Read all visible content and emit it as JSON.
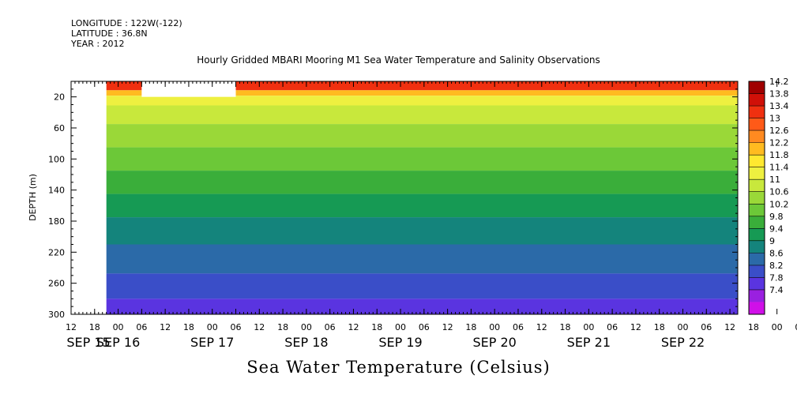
{
  "header": {
    "longitude": "LONGITUDE : 122W(-122)",
    "latitude": "LATITUDE : 36.8N",
    "year": "YEAR : 2012"
  },
  "chart_data": {
    "type": "heatmap",
    "title": "Hourly Gridded MBARI Mooring M1 Sea Water Temperature and Salinity Observations",
    "variable_title": "Sea Water Temperature (Celsius)",
    "ylabel": "DEPTH (m)",
    "y_reversed": true,
    "ylim": [
      300,
      0
    ],
    "y_ticks": [
      20,
      60,
      100,
      140,
      180,
      220,
      260,
      300
    ],
    "x_range_hours": [
      "2012-09-15 12:00",
      "2012-09-22 14:00"
    ],
    "hour_tick_labels": [
      "12",
      "18",
      "00",
      "06",
      "12",
      "18",
      "00",
      "06",
      "12",
      "18",
      "00",
      "06",
      "12",
      "18",
      "00",
      "06",
      "12",
      "18",
      "00",
      "06",
      "12",
      "18",
      "00",
      "06",
      "12",
      "18",
      "00",
      "06",
      "12",
      "18",
      "00",
      "06",
      "12"
    ],
    "date_labels": [
      "SEP 15",
      "SEP 16",
      "SEP 17",
      "SEP 18",
      "SEP 19",
      "SEP 20",
      "SEP 21",
      "SEP 22"
    ],
    "data_start": "2012-09-15 21:00",
    "missing_regions": [
      {
        "from": "2012-09-16 06:00",
        "to": "2012-09-17 06:00",
        "depth_from": 0,
        "depth_to": 20
      }
    ],
    "colorbar_levels": [
      "14.2",
      "13.8",
      "13.4",
      "13",
      "12.6",
      "12.2",
      "11.8",
      "11.4",
      "11",
      "10.6",
      "10.2",
      "9.8",
      "9.4",
      "9",
      "8.6",
      "8.2",
      "7.8",
      "7.4"
    ],
    "colorbar_colors": [
      "#a00000",
      "#d01008",
      "#f03010",
      "#ff5a18",
      "#ff8a20",
      "#ffbb20",
      "#ffe830",
      "#eef040",
      "#c8e83c",
      "#9ad838",
      "#6cc838",
      "#3aae3a",
      "#169a54",
      "#14847c",
      "#2b6aa8",
      "#3a4ec8",
      "#5a34e0",
      "#9a20e0",
      "#d010e8"
    ],
    "profile": [
      {
        "depth": 8,
        "temp": 13.4
      },
      {
        "depth": 15,
        "temp": 12.4
      },
      {
        "depth": 22,
        "temp": 11.6
      },
      {
        "depth": 40,
        "temp": 11.0
      },
      {
        "depth": 70,
        "temp": 10.6
      },
      {
        "depth": 100,
        "temp": 10.2
      },
      {
        "depth": 130,
        "temp": 9.8
      },
      {
        "depth": 160,
        "temp": 9.5
      },
      {
        "depth": 190,
        "temp": 9.1
      },
      {
        "depth": 230,
        "temp": 8.7
      },
      {
        "depth": 265,
        "temp": 8.3
      },
      {
        "depth": 295,
        "temp": 7.9
      }
    ]
  }
}
